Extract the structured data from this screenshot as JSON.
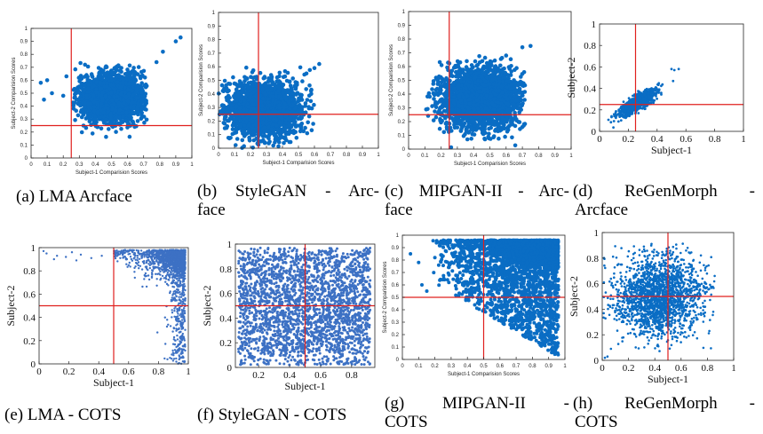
{
  "colors": {
    "points": "#0a6dc4",
    "points_cots": "#3d71c4",
    "crosshair": "#e0201e",
    "axis": "#262626"
  },
  "chart_data": [
    {
      "id": "a",
      "type": "scatter",
      "caption": "(a) LMA Arcface",
      "caption_lines": [
        "(a) LMA Arcface"
      ],
      "style": "small",
      "xlabel": "Subject-1 Comparision Scores",
      "ylabel": "Subject-2 Comparision Scores",
      "xlim": [
        0,
        1
      ],
      "ylim": [
        0,
        1
      ],
      "xticks": [
        "0",
        "0.1",
        "0.2",
        "0.3",
        "0.4",
        "0.5",
        "0.6",
        "0.7",
        "0.8",
        "0.9",
        "1"
      ],
      "yticks": [
        "0",
        "0.1",
        "0.2",
        "0.3",
        "0.4",
        "0.5",
        "0.6",
        "0.7",
        "0.8",
        "0.9",
        "1"
      ],
      "crosshair": {
        "x": 0.25,
        "y": 0.25
      },
      "cloud": {
        "cx": 0.5,
        "cy": 0.46,
        "sx": 0.1,
        "sy": 0.09,
        "xmin": 0.26,
        "xmax": 0.72,
        "ymin": 0.03,
        "ymax": 0.74,
        "rot": 0.0
      },
      "outliers": [
        [
          0.9,
          0.9
        ],
        [
          0.93,
          0.93
        ],
        [
          0.82,
          0.82
        ],
        [
          0.78,
          0.74
        ],
        [
          0.08,
          0.45
        ],
        [
          0.06,
          0.58
        ],
        [
          0.1,
          0.6
        ],
        [
          0.13,
          0.5
        ],
        [
          0.2,
          0.48
        ],
        [
          0.22,
          0.63
        ]
      ]
    },
    {
      "id": "b",
      "type": "scatter",
      "caption": "(b) StyleGAN - Arcface",
      "caption_lines": [
        "(b) StyleGAN - Arc-",
        "face"
      ],
      "style": "small",
      "xlabel": "Subject-1 Comparision Scores",
      "ylabel": "Subject-2 Comparision Scores",
      "xlim": [
        0,
        1
      ],
      "ylim": [
        0,
        1
      ],
      "xticks": [
        "0",
        "0.1",
        "0.2",
        "0.3",
        "0.4",
        "0.5",
        "0.6",
        "0.7",
        "0.8",
        "0.9",
        "1"
      ],
      "yticks": [
        "0",
        "0.1",
        "0.2",
        "0.3",
        "0.4",
        "0.5",
        "0.6",
        "0.7",
        "0.8",
        "0.9",
        "1"
      ],
      "crosshair": {
        "x": 0.25,
        "y": 0.25
      },
      "cloud": {
        "cx": 0.28,
        "cy": 0.29,
        "sx": 0.11,
        "sy": 0.1,
        "xmin": 0.0,
        "xmax": 0.62,
        "ymin": 0.0,
        "ymax": 0.6,
        "rot": 0.0
      },
      "outliers": [
        [
          0.63,
          0.62
        ],
        [
          0.6,
          0.59
        ],
        [
          0.55,
          0.55
        ],
        [
          0.58,
          0.4
        ]
      ]
    },
    {
      "id": "c",
      "type": "scatter",
      "caption": "(c) MIPGAN-II - Arcface",
      "caption_lines": [
        "(c) MIPGAN-II - Arc-",
        "face"
      ],
      "style": "small",
      "xlabel": "Subject-1 Comparision Scores",
      "ylabel": "Subject-2 Comparision Scores",
      "xlim": [
        0,
        1
      ],
      "ylim": [
        0,
        1
      ],
      "xticks": [
        "0",
        "0.1",
        "0.2",
        "0.3",
        "0.4",
        "0.5",
        "0.6",
        "0.7",
        "0.8",
        "0.9",
        "1"
      ],
      "yticks": [
        "0",
        "0.1",
        "0.2",
        "0.3",
        "0.4",
        "0.5",
        "0.6",
        "0.7",
        "0.8",
        "0.9",
        "1"
      ],
      "crosshair": {
        "x": 0.25,
        "y": 0.25
      },
      "cloud": {
        "cx": 0.45,
        "cy": 0.37,
        "sx": 0.12,
        "sy": 0.11,
        "xmin": 0.1,
        "xmax": 0.72,
        "ymin": 0.0,
        "ymax": 0.68,
        "rot": 0.0
      },
      "outliers": [
        [
          0.7,
          0.74
        ],
        [
          0.75,
          0.75
        ],
        [
          0.6,
          0.68
        ]
      ]
    },
    {
      "id": "d",
      "type": "scatter",
      "caption": "(d) ReGenMorph - Arcface",
      "caption_lines": [
        "(d) ReGenMorph -",
        "Arcface"
      ],
      "style": "big",
      "xlabel": "Subject-1",
      "ylabel": "Subject-2",
      "xlim": [
        0,
        1
      ],
      "ylim": [
        0,
        1
      ],
      "xticks": [
        "0",
        "0.2",
        "0.4",
        "0.6",
        "0.8",
        "1"
      ],
      "yticks": [
        "0",
        "0.2",
        "0.4",
        "0.6",
        "0.8",
        "1"
      ],
      "crosshair": {
        "x": 0.25,
        "y": 0.25
      },
      "cloud": {
        "cx": 0.27,
        "cy": 0.27,
        "sx": 0.09,
        "sy": 0.028,
        "xmin": 0.0,
        "xmax": 0.55,
        "ymin": 0.0,
        "ymax": 0.5,
        "rot": 0.75
      },
      "outliers": [
        [
          0.5,
          0.58
        ],
        [
          0.55,
          0.58
        ],
        [
          0.52,
          0.57
        ]
      ]
    },
    {
      "id": "e",
      "type": "scatter",
      "caption": "(e) LMA - COTS",
      "caption_lines": [
        "(e) LMA - COTS"
      ],
      "style": "big",
      "xlabel": "Subject-1",
      "ylabel": "Subject-2",
      "xlim": [
        0,
        1
      ],
      "ylim": [
        0,
        1
      ],
      "xticks": [
        "0",
        "0.2",
        "0.4",
        "0.6",
        "0.8",
        "1"
      ],
      "yticks": [
        "0",
        "0.2",
        "0.4",
        "0.6",
        "0.8",
        "1"
      ],
      "crosshair": {
        "x": 0.5,
        "y": 0.5
      },
      "cloud": {
        "kind": "corner",
        "xmin": 0.5,
        "xmax": 0.98,
        "ymin": 0.0,
        "ymax": 0.98
      },
      "outliers": [
        [
          0.05,
          0.95
        ],
        [
          0.12,
          0.93
        ],
        [
          0.18,
          0.92
        ],
        [
          0.28,
          0.94
        ],
        [
          0.35,
          0.91
        ],
        [
          0.1,
          0.9
        ],
        [
          0.25,
          0.89
        ],
        [
          0.42,
          0.93
        ],
        [
          0.03,
          0.97
        ],
        [
          0.22,
          0.96
        ]
      ]
    },
    {
      "id": "f",
      "type": "scatter",
      "caption": "(f) StyleGAN - COTS",
      "caption_lines": [
        "(f) StyleGAN - COTS"
      ],
      "style": "big",
      "xlabel": "Subject-1",
      "ylabel": "Subject-2",
      "xlim": [
        0.05,
        0.95
      ],
      "ylim": [
        0,
        1
      ],
      "xticks": [
        "0.2",
        "0.4",
        "0.6",
        "0.8"
      ],
      "yticks": [
        "0",
        "0.2",
        "0.4",
        "0.6",
        "0.8",
        "1"
      ],
      "crosshair": {
        "x": 0.5,
        "y": 0.5
      },
      "cloud": {
        "kind": "uniform",
        "xmin": 0.07,
        "xmax": 0.92,
        "ymin": 0.02,
        "ymax": 0.97
      },
      "outliers": []
    },
    {
      "id": "g",
      "type": "scatter",
      "caption": "(g) MIPGAN-II - COTS",
      "caption_lines": [
        "(g) MIPGAN-II -",
        "COTS"
      ],
      "style": "small",
      "xlabel": "Subject-1 Comparision Scores",
      "ylabel": "Subject-2 Comparision Scores",
      "xlim": [
        0,
        1
      ],
      "ylim": [
        0,
        1
      ],
      "xticks": [
        "0",
        "0.1",
        "0.2",
        "0.3",
        "0.4",
        "0.5",
        "0.6",
        "0.7",
        "0.8",
        "0.9",
        "1"
      ],
      "yticks": [
        "0",
        "0.1",
        "0.2",
        "0.3",
        "0.4",
        "0.5",
        "0.6",
        "0.7",
        "0.8",
        "0.9",
        "1"
      ],
      "crosshair": {
        "x": 0.5,
        "y": 0.5
      },
      "cloud": {
        "kind": "corner",
        "xmin": 0.18,
        "xmax": 0.96,
        "ymin": 0.02,
        "ymax": 0.96
      },
      "outliers": [
        [
          0.1,
          0.78
        ],
        [
          0.12,
          0.6
        ],
        [
          0.15,
          0.55
        ],
        [
          0.05,
          0.85
        ]
      ]
    },
    {
      "id": "h",
      "type": "scatter",
      "caption": "(h) ReGenMorph - COTS",
      "caption_lines": [
        "(h) ReGenMorph -",
        "COTS"
      ],
      "style": "big",
      "xlabel": "Subject-1",
      "ylabel": "Subject-2",
      "xlim": [
        0,
        1
      ],
      "ylim": [
        0,
        1
      ],
      "xticks": [
        "0",
        "0.2",
        "0.4",
        "0.6",
        "0.8",
        "1"
      ],
      "yticks": [
        "0",
        "0.2",
        "0.4",
        "0.6",
        "0.8",
        "1"
      ],
      "crosshair": {
        "x": 0.5,
        "y": 0.5
      },
      "cloud": {
        "cx": 0.43,
        "cy": 0.5,
        "sx": 0.17,
        "sy": 0.16,
        "xmin": 0.01,
        "xmax": 0.87,
        "ymin": 0.05,
        "ymax": 0.92,
        "rot": 0.0
      },
      "outliers": [
        [
          0.02,
          0.02
        ],
        [
          0.04,
          0.03
        ]
      ]
    }
  ]
}
